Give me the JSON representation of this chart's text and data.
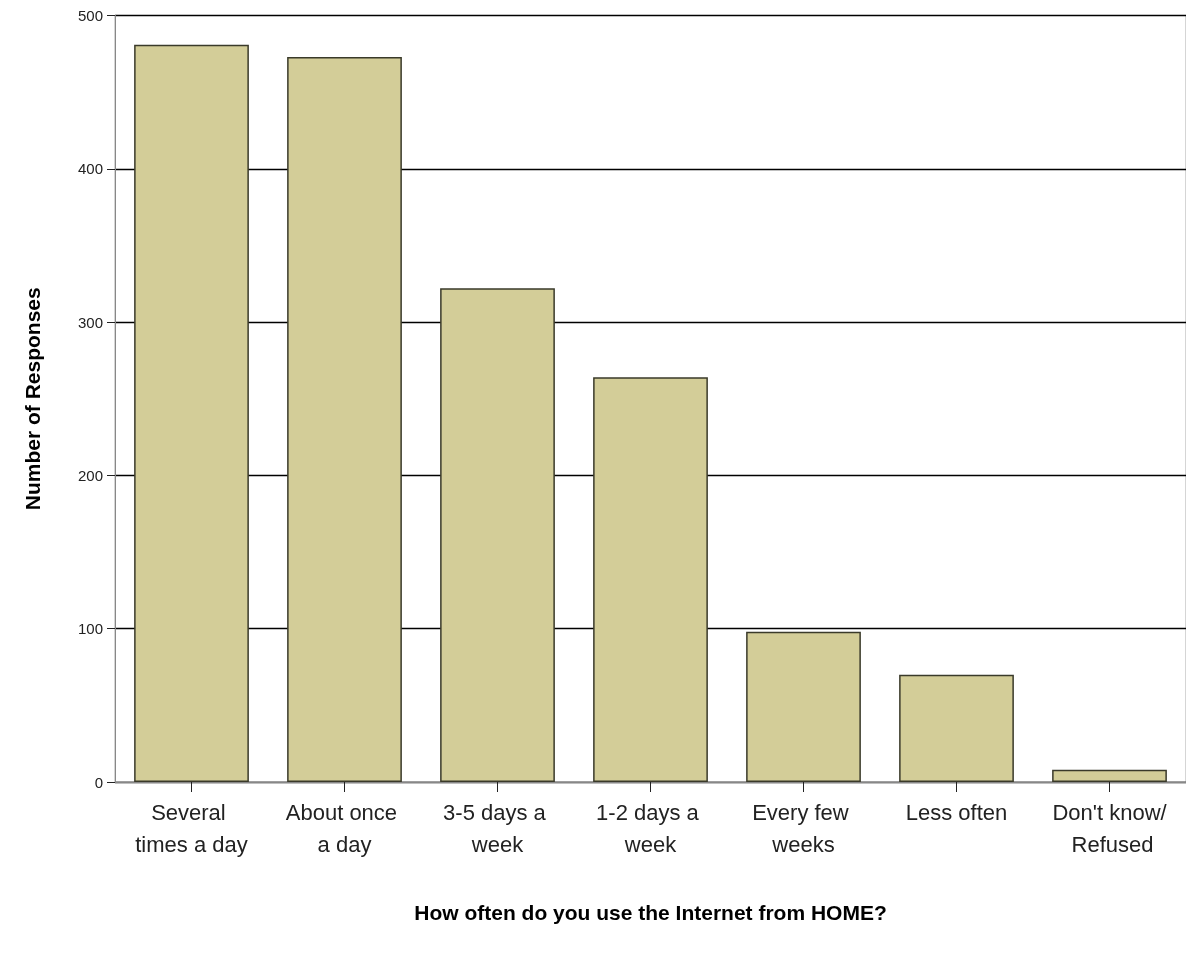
{
  "chart_data": {
    "type": "bar",
    "xlabel": "How often do you use the Internet from HOME?",
    "ylabel": "Number of Responses",
    "categories": [
      "Several times a day",
      "About once a day",
      "3-5 days a week",
      "1-2 days a week",
      "Every few weeks",
      "Less often",
      "Don't know/ Refused"
    ],
    "values": [
      481,
      473,
      322,
      264,
      98,
      70,
      8
    ],
    "color": "#d3cd98",
    "ylim": [
      0,
      500
    ],
    "yticks": [
      0,
      100,
      200,
      300,
      400,
      500
    ],
    "grid": "y"
  }
}
